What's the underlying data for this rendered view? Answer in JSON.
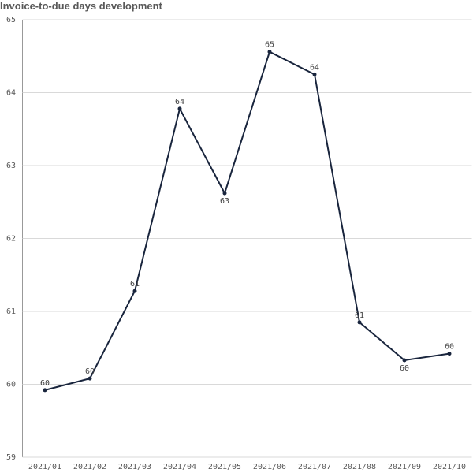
{
  "chart_data": {
    "type": "line",
    "title": "Invoice-to-due days development",
    "categories": [
      "2021/01",
      "2021/02",
      "2021/03",
      "2021/04",
      "2021/05",
      "2021/06",
      "2021/07",
      "2021/08",
      "2021/09",
      "2021/10"
    ],
    "values": [
      59.92,
      60.08,
      61.28,
      63.78,
      62.62,
      64.56,
      64.25,
      60.85,
      60.33,
      60.42
    ],
    "value_labels": [
      "60",
      "60",
      "61",
      "64",
      "63",
      "65",
      "64",
      "61",
      "60",
      "60"
    ],
    "color": "#19253d",
    "ylim": [
      59,
      65
    ],
    "yticks": [
      59,
      60,
      61,
      62,
      63,
      64,
      65
    ],
    "grid": true
  }
}
